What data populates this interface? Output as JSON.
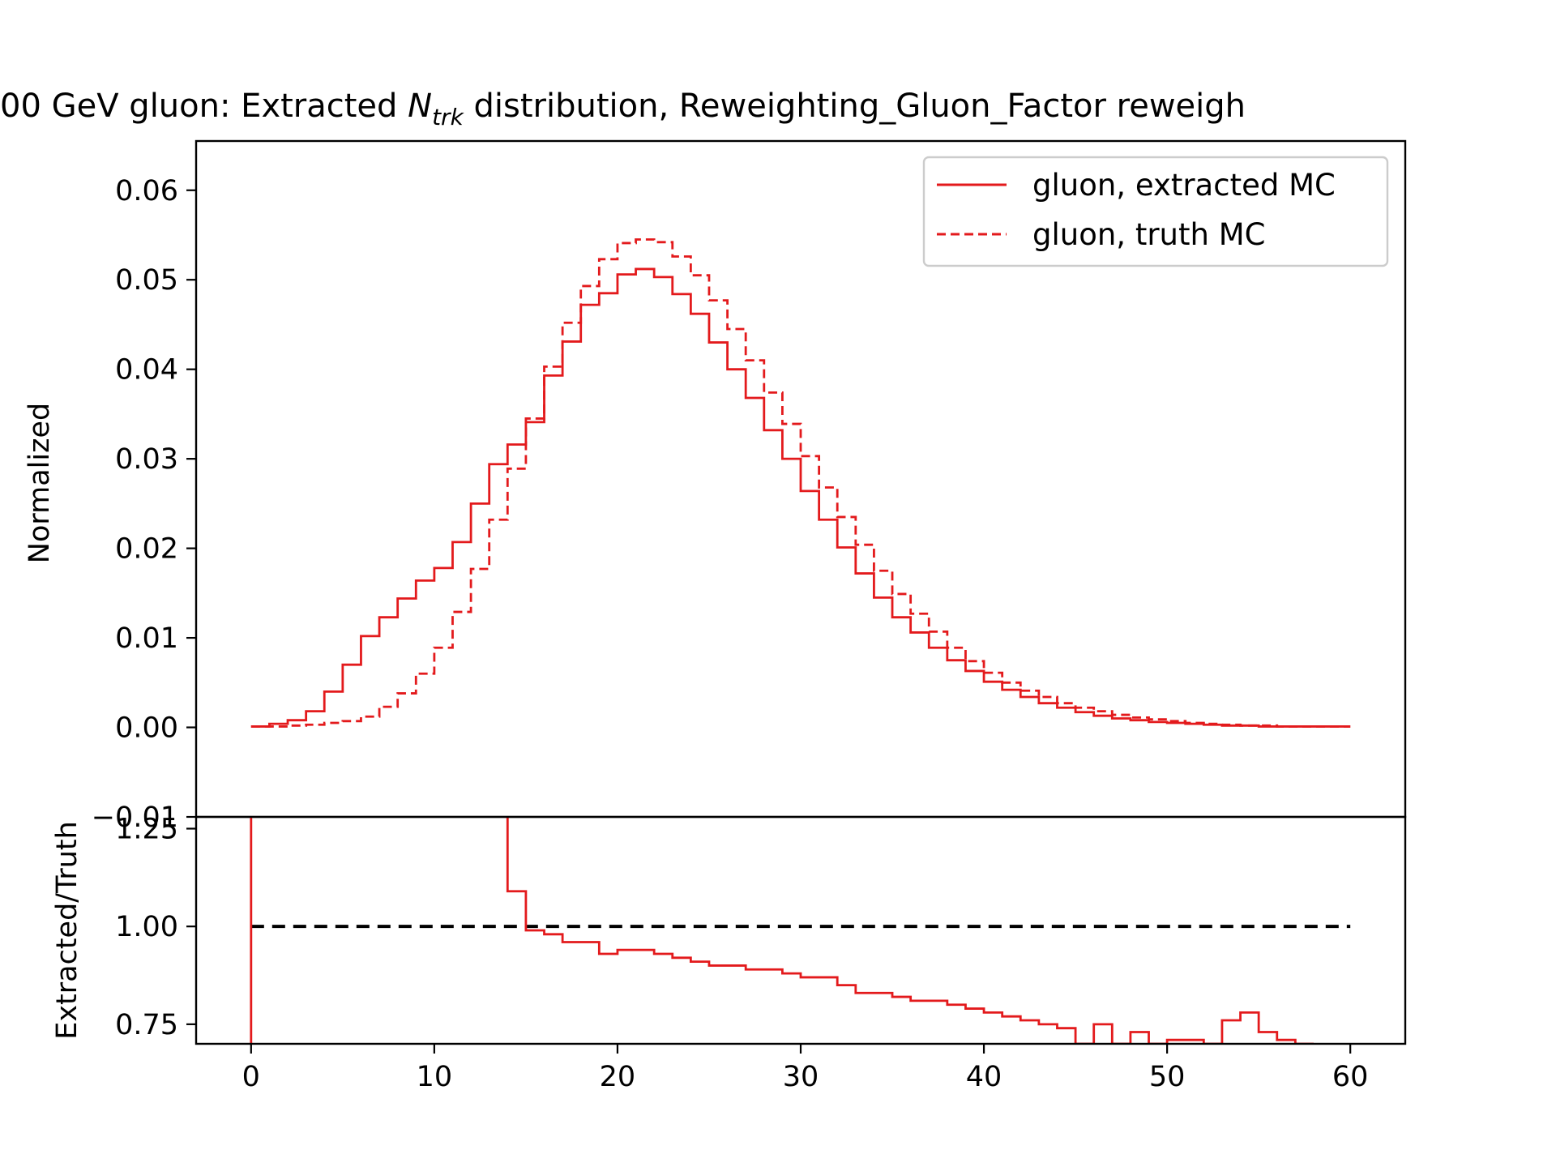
{
  "chart_data": [
    {
      "type": "line",
      "panel": "main",
      "title_parts": {
        "prefix": "00 GeV gluon: Extracted ",
        "var": "N",
        "sub": "trk",
        "suffix": " distribution, Reweighting_Gluon_Factor reweigh"
      },
      "xlabel": "",
      "ylabel": "Normalized",
      "xlim": [
        -3,
        63
      ],
      "ylim": [
        -0.01,
        0.0655
      ],
      "yticks": [
        -0.01,
        0.0,
        0.01,
        0.02,
        0.03,
        0.04,
        0.05,
        0.06
      ],
      "ytick_labels": [
        "−0.01",
        "0.00",
        "0.01",
        "0.02",
        "0.03",
        "0.04",
        "0.05",
        "0.06"
      ],
      "grid": false,
      "legend": "top-right",
      "bin_edges_start": 0,
      "bin_width": 1,
      "series": [
        {
          "name": "gluon, extracted MC",
          "style": "solid",
          "color": "#e31a1c",
          "values": [
            0.0001,
            0.0004,
            0.0008,
            0.0018,
            0.004,
            0.007,
            0.0102,
            0.0123,
            0.0144,
            0.0164,
            0.0178,
            0.0207,
            0.025,
            0.0294,
            0.0316,
            0.0341,
            0.0393,
            0.0431,
            0.0472,
            0.0485,
            0.0506,
            0.0512,
            0.0503,
            0.0484,
            0.0462,
            0.043,
            0.04,
            0.0368,
            0.0332,
            0.03,
            0.0264,
            0.0232,
            0.0201,
            0.0172,
            0.0145,
            0.0123,
            0.0106,
            0.0089,
            0.0075,
            0.0063,
            0.0051,
            0.0042,
            0.0034,
            0.0027,
            0.0022,
            0.0017,
            0.0013,
            0.001,
            0.0008,
            0.0006,
            0.0005,
            0.0004,
            0.0003,
            0.0002,
            0.0002,
            0.0001,
            0.0001,
            0.0001,
            0.0001,
            0.0001
          ]
        },
        {
          "name": "gluon, truth MC",
          "style": "dashed",
          "color": "#e31a1c",
          "values": [
            0.0001,
            0.0001,
            0.0002,
            0.0003,
            0.0005,
            0.0007,
            0.0012,
            0.0023,
            0.0038,
            0.006,
            0.0089,
            0.0129,
            0.0177,
            0.0232,
            0.0289,
            0.0345,
            0.0403,
            0.0452,
            0.0493,
            0.0523,
            0.0541,
            0.0545,
            0.0542,
            0.0526,
            0.0505,
            0.0477,
            0.0445,
            0.041,
            0.0374,
            0.0339,
            0.0303,
            0.0268,
            0.0235,
            0.0204,
            0.0175,
            0.0149,
            0.0127,
            0.0107,
            0.0089,
            0.0074,
            0.0061,
            0.005,
            0.0041,
            0.0034,
            0.0027,
            0.0022,
            0.0018,
            0.0014,
            0.0011,
            0.0009,
            0.0007,
            0.0005,
            0.0004,
            0.0003,
            0.0002,
            0.0002,
            0.0001,
            0.0001,
            0.0001,
            0.0001
          ]
        }
      ]
    },
    {
      "type": "line",
      "panel": "ratio",
      "xlabel": "",
      "ylabel": "Extracted/Truth",
      "xlim": [
        -3,
        63
      ],
      "ylim": [
        0.7,
        1.28
      ],
      "xticks": [
        0,
        10,
        20,
        30,
        40,
        50,
        60
      ],
      "xtick_labels": [
        "0",
        "10",
        "20",
        "30",
        "40",
        "50",
        "60"
      ],
      "yticks": [
        0.75,
        1.0,
        1.25
      ],
      "ytick_labels": [
        "0.75",
        "1.00",
        "1.25"
      ],
      "reference_line": {
        "y": 1.0,
        "style": "dashed",
        "color": "#000000"
      },
      "series": [
        {
          "name": "",
          "style": "solid",
          "color": "#e31a1c",
          "bin_edges_start": 13,
          "bin_width": 1,
          "values": [
            1.3,
            1.09,
            0.99,
            0.98,
            0.96,
            0.96,
            0.93,
            0.94,
            0.94,
            0.93,
            0.92,
            0.91,
            0.9,
            0.9,
            0.89,
            0.89,
            0.88,
            0.87,
            0.87,
            0.85,
            0.83,
            0.83,
            0.82,
            0.81,
            0.81,
            0.8,
            0.79,
            0.78,
            0.77,
            0.76,
            0.75,
            0.74,
            0.7,
            0.75,
            0.7,
            0.73,
            0.7,
            0.71,
            0.71,
            0.7,
            0.76,
            0.78,
            0.73,
            0.71,
            0.7
          ],
          "drop_at_x": 0
        }
      ]
    }
  ]
}
